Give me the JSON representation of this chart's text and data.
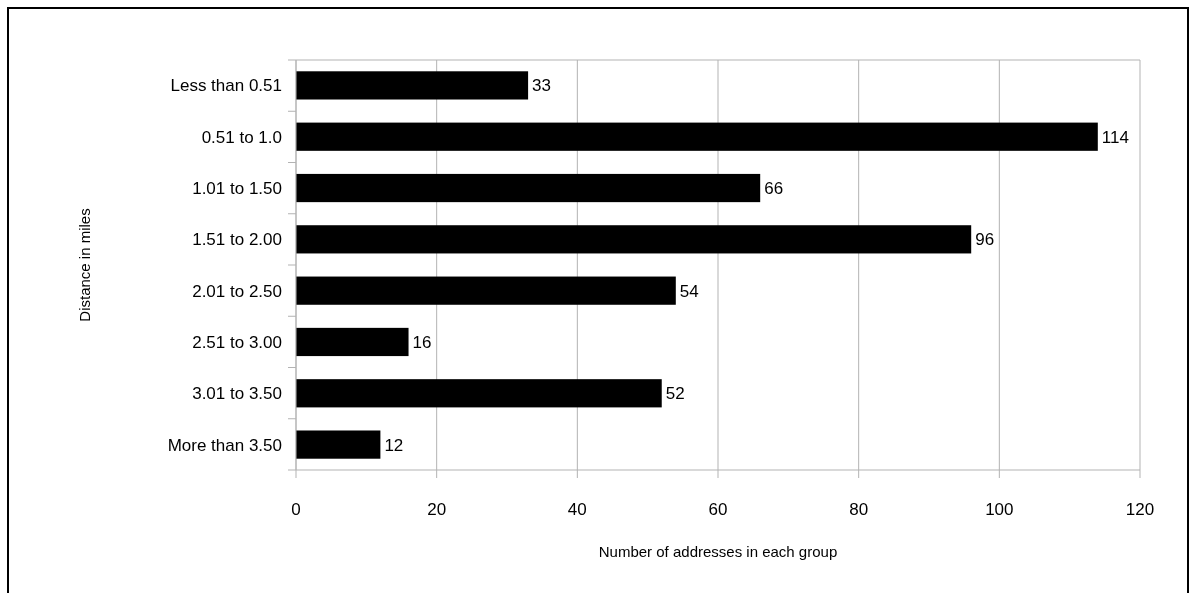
{
  "chart_data": {
    "type": "bar",
    "orientation": "horizontal",
    "categories": [
      "Less than 0.51",
      "0.51 to 1.0",
      "1.01 to 1.50",
      "1.51 to 2.00",
      "2.01 to 2.50",
      "2.51 to 3.00",
      "3.01 to 3.50",
      "More than 3.50"
    ],
    "values": [
      33,
      114,
      66,
      96,
      54,
      16,
      52,
      12
    ],
    "color": "#000000",
    "xlim": [
      0,
      120
    ],
    "xticks": [
      0,
      20,
      40,
      60,
      80,
      100,
      120
    ],
    "xlabel": "Number of addresses in each group",
    "ylabel": "Distance in miles",
    "grid": "x",
    "data_labels": true
  }
}
